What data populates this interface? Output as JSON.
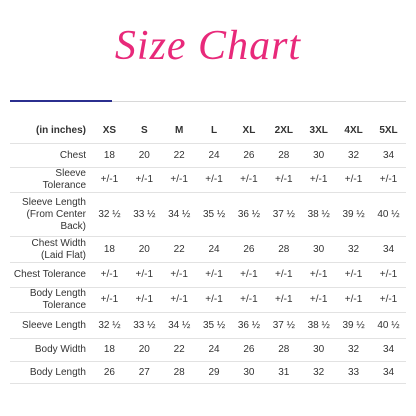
{
  "title": "Size Chart",
  "table": {
    "header": [
      "(in inches)",
      "XS",
      "S",
      "M",
      "L",
      "XL",
      "2XL",
      "3XL",
      "4XL",
      "5XL"
    ],
    "rows": [
      [
        "Chest",
        "18",
        "20",
        "22",
        "24",
        "26",
        "28",
        "30",
        "32",
        "34"
      ],
      [
        "Sleeve Tolerance",
        "+/-1",
        "+/-1",
        "+/-1",
        "+/-1",
        "+/-1",
        "+/-1",
        "+/-1",
        "+/-1",
        "+/-1"
      ],
      [
        "Sleeve Length (From Center Back)",
        "32 ½",
        "33 ½",
        "34 ½",
        "35 ½",
        "36 ½",
        "37 ½",
        "38 ½",
        "39 ½",
        "40 ½"
      ],
      [
        "Chest Width (Laid Flat)",
        "18",
        "20",
        "22",
        "24",
        "26",
        "28",
        "30",
        "32",
        "34"
      ],
      [
        "Chest Tolerance",
        "+/-1",
        "+/-1",
        "+/-1",
        "+/-1",
        "+/-1",
        "+/-1",
        "+/-1",
        "+/-1",
        "+/-1"
      ],
      [
        "Body Length Tolerance",
        "+/-1",
        "+/-1",
        "+/-1",
        "+/-1",
        "+/-1",
        "+/-1",
        "+/-1",
        "+/-1",
        "+/-1"
      ],
      [
        "Sleeve Length",
        "32 ½",
        "33 ½",
        "34 ½",
        "35 ½",
        "36 ½",
        "37 ½",
        "38 ½",
        "39 ½",
        "40 ½"
      ],
      [
        "Body Width",
        "18",
        "20",
        "22",
        "24",
        "26",
        "28",
        "30",
        "32",
        "34"
      ],
      [
        "Body Length",
        "26",
        "27",
        "28",
        "29",
        "30",
        "31",
        "32",
        "33",
        "34"
      ]
    ]
  }
}
